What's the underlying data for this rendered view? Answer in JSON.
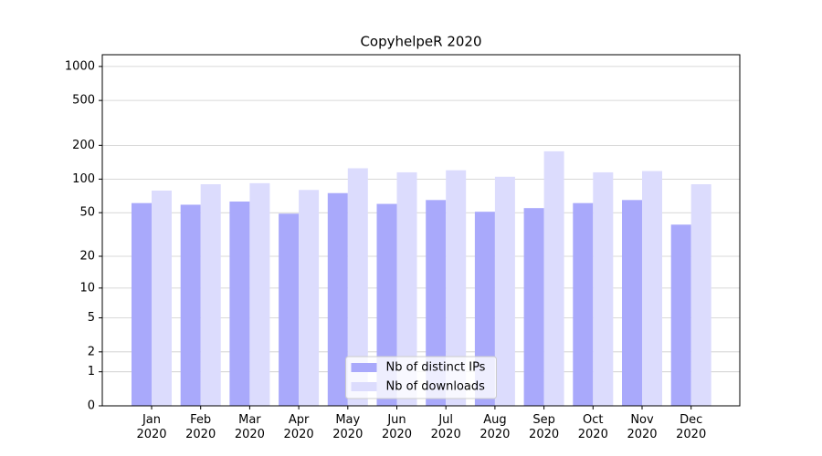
{
  "chart_data": {
    "type": "bar",
    "title": "CopyhelpeR 2020",
    "categories": [
      "Jan\n2020",
      "Feb\n2020",
      "Mar\n2020",
      "Apr\n2020",
      "May\n2020",
      "Jun\n2020",
      "Jul\n2020",
      "Aug\n2020",
      "Sep\n2020",
      "Oct\n2020",
      "Nov\n2020",
      "Dec\n2020"
    ],
    "series": [
      {
        "name": "Nb of distinct IPs",
        "color": "#a9a9fb",
        "values": [
          61,
          59,
          63,
          49,
          75,
          60,
          65,
          51,
          55,
          61,
          65,
          39
        ]
      },
      {
        "name": "Nb of downloads",
        "color": "#dcdcfd",
        "values": [
          79,
          90,
          92,
          80,
          125,
          115,
          120,
          105,
          177,
          115,
          118,
          90
        ]
      }
    ],
    "yscale": "log1p",
    "ylim": [
      0,
      1270
    ],
    "yticks": [
      0,
      1,
      2,
      5,
      10,
      20,
      50,
      100,
      200,
      500,
      1000
    ],
    "grid": true,
    "legend": "lower center"
  }
}
